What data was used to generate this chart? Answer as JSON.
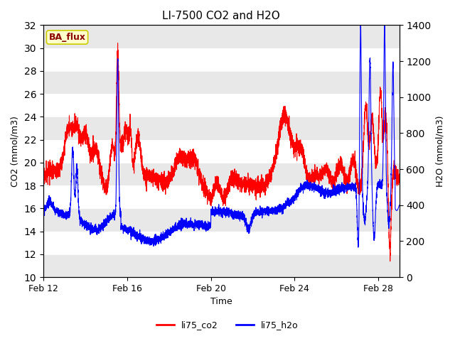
{
  "title": "LI-7500 CO2 and H2O",
  "xlabel": "Time",
  "ylabel_left": "CO2 (mmol/m3)",
  "ylabel_right": "H2O (mmol/m3)",
  "ylim_left": [
    10,
    32
  ],
  "ylim_right": [
    0,
    1400
  ],
  "yticks_left": [
    10,
    12,
    14,
    16,
    18,
    20,
    22,
    24,
    26,
    28,
    30,
    32
  ],
  "yticks_right": [
    0,
    200,
    400,
    600,
    800,
    1000,
    1200,
    1400
  ],
  "xtick_labels": [
    "Feb 12",
    "Feb 16",
    "Feb 20",
    "Feb 24",
    "Feb 28"
  ],
  "xtick_positions": [
    0,
    4,
    8,
    12,
    16
  ],
  "legend_labels": [
    "li75_co2",
    "li75_h2o"
  ],
  "annotation_text": "BA_flux",
  "annotation_bg": "#ffffcc",
  "annotation_border": "#cccc00",
  "title_fontsize": 11,
  "axis_fontsize": 9,
  "legend_fontsize": 9,
  "fig_bg": "#ffffff",
  "stripe_light": "#e8e8e8",
  "stripe_dark": "#ffffff"
}
